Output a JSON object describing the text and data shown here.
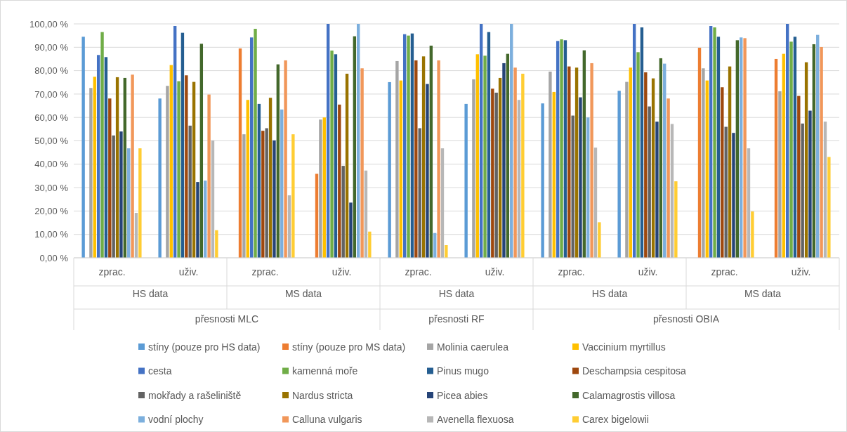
{
  "chart_data": {
    "type": "bar",
    "categories": [
      "zprac.",
      "uživ.",
      "zprac.",
      "uživ.",
      "zprac.",
      "uživ.",
      "zprac.",
      "uživ.",
      "zprac.",
      "uživ."
    ],
    "annotations": [
      "HS data",
      "MS data",
      "HS data",
      "HS data",
      "MS data",
      "přesnosti MLC",
      "přesnosti RF",
      "přesnosti OBIA"
    ],
    "ylim": [
      0,
      100
    ],
    "yticks": [
      {
        "value": 0,
        "label": "0,00 %"
      },
      {
        "value": 10,
        "label": "10,00 %"
      },
      {
        "value": 20,
        "label": "20,00 %"
      },
      {
        "value": 30,
        "label": "30,00 %"
      },
      {
        "value": 40,
        "label": "40,00 %"
      },
      {
        "value": 50,
        "label": "50,00 %"
      },
      {
        "value": 60,
        "label": "60,00 %"
      },
      {
        "value": 70,
        "label": "70,00 %"
      },
      {
        "value": 80,
        "label": "80,00 %"
      },
      {
        "value": 90,
        "label": "90,00 %"
      },
      {
        "value": 100,
        "label": "100,00 %"
      }
    ],
    "grid": "y",
    "legend": "bottom",
    "series": [
      {
        "name": "stíny (pouze pro HS data)",
        "color": "#5b9bd5",
        "values": [
          94.5,
          68.1,
          null,
          null,
          75.1,
          65.8,
          66,
          71.4,
          null,
          null
        ]
      },
      {
        "name": "stíny (pouze pro MS data)",
        "color": "#ed7d31",
        "values": [
          null,
          null,
          89.5,
          35.9,
          null,
          null,
          null,
          null,
          89.8,
          85
        ]
      },
      {
        "name": "Molinia caerulea",
        "color": "#a5a5a5",
        "values": [
          72.6,
          73.5,
          52.8,
          59.1,
          84.1,
          76.3,
          79.6,
          75.2,
          81,
          71.2
        ]
      },
      {
        "name": "Vaccinium myrtillus",
        "color": "#ffc000",
        "values": [
          77.4,
          82.4,
          67.5,
          60,
          75.8,
          87,
          70.9,
          81.3,
          75.8,
          87.2
        ]
      },
      {
        "name": "cesta",
        "color": "#4472c4",
        "values": [
          86.7,
          99.1,
          94.2,
          100,
          95.6,
          100,
          92.7,
          100,
          99.1,
          100
        ]
      },
      {
        "name": "kamenná moře",
        "color": "#70ad47",
        "values": [
          96.5,
          75.5,
          97.9,
          88.6,
          95,
          86.4,
          93.4,
          87.9,
          98.5,
          92.4
        ]
      },
      {
        "name": "Pinus mugo",
        "color": "#255e91",
        "values": [
          85.8,
          96.2,
          65.8,
          87,
          95.9,
          96.5,
          93,
          98.5,
          94.5,
          94.5
        ]
      },
      {
        "name": "Deschampsia cespitosa",
        "color": "#9e480e",
        "values": [
          68.1,
          78,
          54.3,
          65.5,
          84.4,
          72.3,
          81.8,
          79.3,
          72.9,
          69.2
        ]
      },
      {
        "name": "mokřady a rašeliniště",
        "color": "#636363",
        "values": [
          52.3,
          56.5,
          55.4,
          39.3,
          55.4,
          70.6,
          60.8,
          64.7,
          56,
          57.4
        ]
      },
      {
        "name": "Nardus stricta",
        "color": "#997300",
        "values": [
          77.2,
          75.2,
          68.4,
          78.7,
          86.1,
          76.9,
          81.3,
          76.7,
          81.8,
          83.6
        ]
      },
      {
        "name": "Picea abies",
        "color": "#264478",
        "values": [
          54,
          32.4,
          50.2,
          23.6,
          74.3,
          83.2,
          68.6,
          58.2,
          53.4,
          62.9
        ]
      },
      {
        "name": "Calamagrostis villosa",
        "color": "#43682b",
        "values": [
          76.9,
          91.5,
          82.7,
          94.7,
          90.7,
          87.2,
          88.7,
          85.3,
          93,
          91.3
        ]
      },
      {
        "name": "vodní plochy",
        "color": "#7cafdd",
        "values": [
          46.8,
          33,
          63.4,
          100,
          10.6,
          100,
          60,
          83,
          94.2,
          95.3
        ]
      },
      {
        "name": "Calluna vulgaris",
        "color": "#f1975a",
        "values": [
          78.3,
          69.8,
          84.4,
          81,
          84.4,
          81.3,
          83.2,
          68.1,
          93.9,
          90.1
        ]
      },
      {
        "name": "Avenella flexuosa",
        "color": "#b7b7b7",
        "values": [
          19.2,
          50.2,
          26.7,
          37.3,
          46.8,
          67.5,
          47.1,
          57.2,
          46.8,
          58.2
        ]
      },
      {
        "name": "Carex bigelowii",
        "color": "#ffcd33",
        "values": [
          46.8,
          11.8,
          52.8,
          11.2,
          5.4,
          78.7,
          15.2,
          32.7,
          19.8,
          43.1
        ]
      }
    ]
  }
}
